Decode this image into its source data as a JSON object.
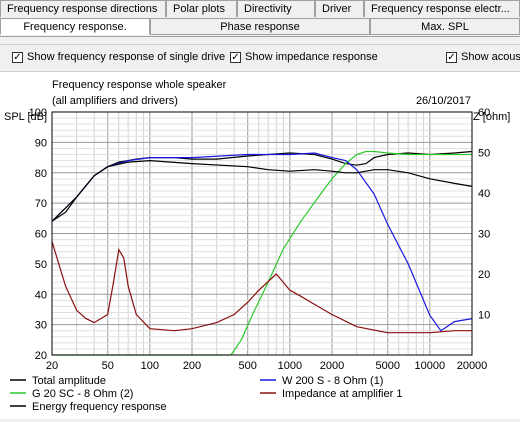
{
  "tabs_top": [
    "Frequency response directions",
    "Polar plots",
    "Directivity",
    "Driver",
    "Frequency response electr..."
  ],
  "tabs_bottom": [
    "Frequency response.",
    "Phase response",
    "Max. SPL"
  ],
  "checkboxes": [
    {
      "label": "Show frequency response of single drive",
      "checked": true
    },
    {
      "label": "Show impedance response",
      "checked": true
    },
    {
      "label": "Show acous",
      "checked": true
    }
  ],
  "chart_data": {
    "type": "line",
    "title": "Frequency response whole speaker",
    "subtitle": "(all amplifiers and drivers)",
    "date": "26/10/2017",
    "ylabel_left": "SPL [dB]",
    "ylabel_right": "Z [ohm]",
    "x_scale": "log",
    "xlim": [
      20,
      20000
    ],
    "ylim_left": [
      20,
      100
    ],
    "ylim_right": [
      0,
      60
    ],
    "x_ticks": [
      "20",
      "50",
      "100",
      "200",
      "500",
      "1000",
      "2000",
      "5000",
      "10000",
      "20000"
    ],
    "y_ticks_left": [
      "20",
      "30",
      "40",
      "50",
      "60",
      "70",
      "80",
      "90",
      "100"
    ],
    "y_ticks_right": [
      "10",
      "20",
      "30",
      "40",
      "50",
      "60"
    ],
    "series": [
      {
        "name": "Total amplitude",
        "color": "#000000",
        "axis": "left",
        "x": [
          20,
          25,
          30,
          40,
          50,
          60,
          70,
          80,
          100,
          150,
          200,
          300,
          500,
          700,
          1000,
          1500,
          2000,
          2500,
          3000,
          3500,
          4000,
          5000,
          7000,
          10000,
          15000,
          20000
        ],
        "y": [
          64,
          67,
          72,
          79,
          82,
          83.5,
          84,
          84.5,
          85,
          85,
          84.5,
          84.5,
          85.5,
          86,
          86.5,
          86,
          84.5,
          83,
          82.5,
          83,
          85,
          86,
          86.5,
          86,
          86.5,
          87
        ]
      },
      {
        "name": "G 20 SC - 8 Ohm (2)",
        "color": "#2ec82e",
        "axis": "left",
        "x": [
          20,
          300,
          380,
          450,
          550,
          700,
          900,
          1200,
          1600,
          2000,
          2500,
          3000,
          3500,
          4000,
          5000,
          7000,
          10000,
          20000
        ],
        "y": [
          20,
          20,
          20,
          25,
          34,
          44,
          55,
          64,
          72,
          78,
          83,
          86,
          87,
          87,
          86.5,
          86,
          86,
          86
        ]
      },
      {
        "name": "W 200 S - 8 Ohm (1)",
        "color": "#1818e0",
        "axis": "left",
        "x": [
          20,
          30,
          40,
          50,
          70,
          100,
          200,
          500,
          1000,
          1500,
          2000,
          2500,
          3000,
          4000,
          5000,
          7000,
          10000,
          12000,
          15000,
          20000
        ],
        "y": [
          64,
          72,
          79,
          82,
          84,
          85,
          85,
          86,
          86,
          86.5,
          85,
          84,
          81,
          73,
          63,
          50,
          33,
          28,
          31,
          32
        ]
      },
      {
        "name": "Energy frequency response",
        "color": "#000000",
        "axis": "left",
        "x": [
          20,
          30,
          40,
          50,
          70,
          100,
          200,
          500,
          700,
          1000,
          1500,
          2000,
          2500,
          3000,
          4000,
          5000,
          7000,
          10000,
          15000,
          20000
        ],
        "y": [
          64,
          72,
          79,
          82,
          83.5,
          84,
          83,
          82,
          81,
          80.5,
          81,
          80.5,
          80,
          80,
          81,
          81,
          80,
          78,
          76.5,
          75.5
        ]
      },
      {
        "name": "Impedance at amplifier 1",
        "color": "#8b1010",
        "axis": "right",
        "x": [
          20,
          25,
          30,
          35,
          40,
          50,
          55,
          60,
          65,
          70,
          80,
          100,
          150,
          200,
          300,
          400,
          500,
          600,
          800,
          1000,
          1200,
          1500,
          2000,
          3000,
          5000,
          10000,
          15000,
          20000
        ],
        "y": [
          28,
          17,
          11,
          9,
          8,
          10,
          18,
          26,
          24,
          17,
          10,
          6.5,
          6,
          6.5,
          8,
          10,
          13,
          16,
          20,
          16,
          14.5,
          12.5,
          10,
          7,
          5.5,
          5.5,
          6,
          6
        ]
      }
    ]
  },
  "legend": [
    {
      "label": "Total amplitude",
      "color": "#000000"
    },
    {
      "label": "W 200 S - 8 Ohm (1)",
      "color": "#1818e0"
    },
    {
      "label": "G 20 SC - 8 Ohm (2)",
      "color": "#2ec82e"
    },
    {
      "label": "Impedance at amplifier 1",
      "color": "#8b1010"
    },
    {
      "label": "Energy frequency response",
      "color": "#000000"
    }
  ]
}
